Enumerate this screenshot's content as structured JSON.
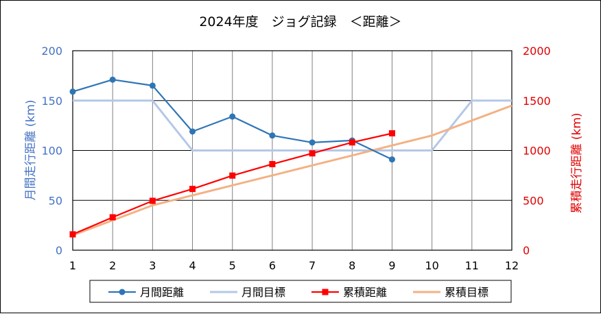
{
  "chart_data": {
    "type": "line",
    "title": "2024年度　ジョグ記録　＜距離＞",
    "x": [
      1,
      2,
      3,
      4,
      5,
      6,
      7,
      8,
      9,
      10,
      11,
      12
    ],
    "xlim": [
      1,
      12
    ],
    "y_left": {
      "label": "月間走行距離 (km)",
      "ylim": [
        0,
        200
      ],
      "ticks": [
        0,
        50,
        100,
        150,
        200
      ],
      "color": "#4472C4"
    },
    "y_right": {
      "label": "累積走行距離 (km)",
      "ylim": [
        0,
        2000
      ],
      "ticks": [
        0,
        500,
        1000,
        1500,
        2000
      ],
      "color": "#E00000"
    },
    "grid": true,
    "legend_position": "bottom",
    "series": [
      {
        "name": "月間距離",
        "axis": "left",
        "color": "#2E75B6",
        "marker": "circle",
        "x": [
          1,
          2,
          3,
          4,
          5,
          6,
          7,
          8,
          9
        ],
        "values": [
          159,
          171,
          165,
          119,
          134,
          115,
          108,
          110,
          91
        ]
      },
      {
        "name": "月間目標",
        "axis": "left",
        "color": "#B4C7E7",
        "marker": "none",
        "x": [
          1,
          2,
          3,
          4,
          5,
          6,
          7,
          8,
          9,
          10,
          11,
          12
        ],
        "values": [
          150,
          150,
          150,
          100,
          100,
          100,
          100,
          100,
          100,
          100,
          150,
          150
        ]
      },
      {
        "name": "累積距離",
        "axis": "right",
        "color": "#FF0000",
        "marker": "square",
        "x": [
          1,
          2,
          3,
          4,
          5,
          6,
          7,
          8,
          9
        ],
        "values": [
          159,
          330,
          495,
          614,
          748,
          863,
          971,
          1081,
          1172
        ]
      },
      {
        "name": "累積目標",
        "axis": "right",
        "color": "#F4B183",
        "marker": "none",
        "x": [
          1,
          2,
          3,
          4,
          5,
          6,
          7,
          8,
          9,
          10,
          11,
          12
        ],
        "values": [
          150,
          300,
          450,
          550,
          650,
          750,
          850,
          950,
          1050,
          1150,
          1300,
          1450
        ]
      }
    ]
  }
}
